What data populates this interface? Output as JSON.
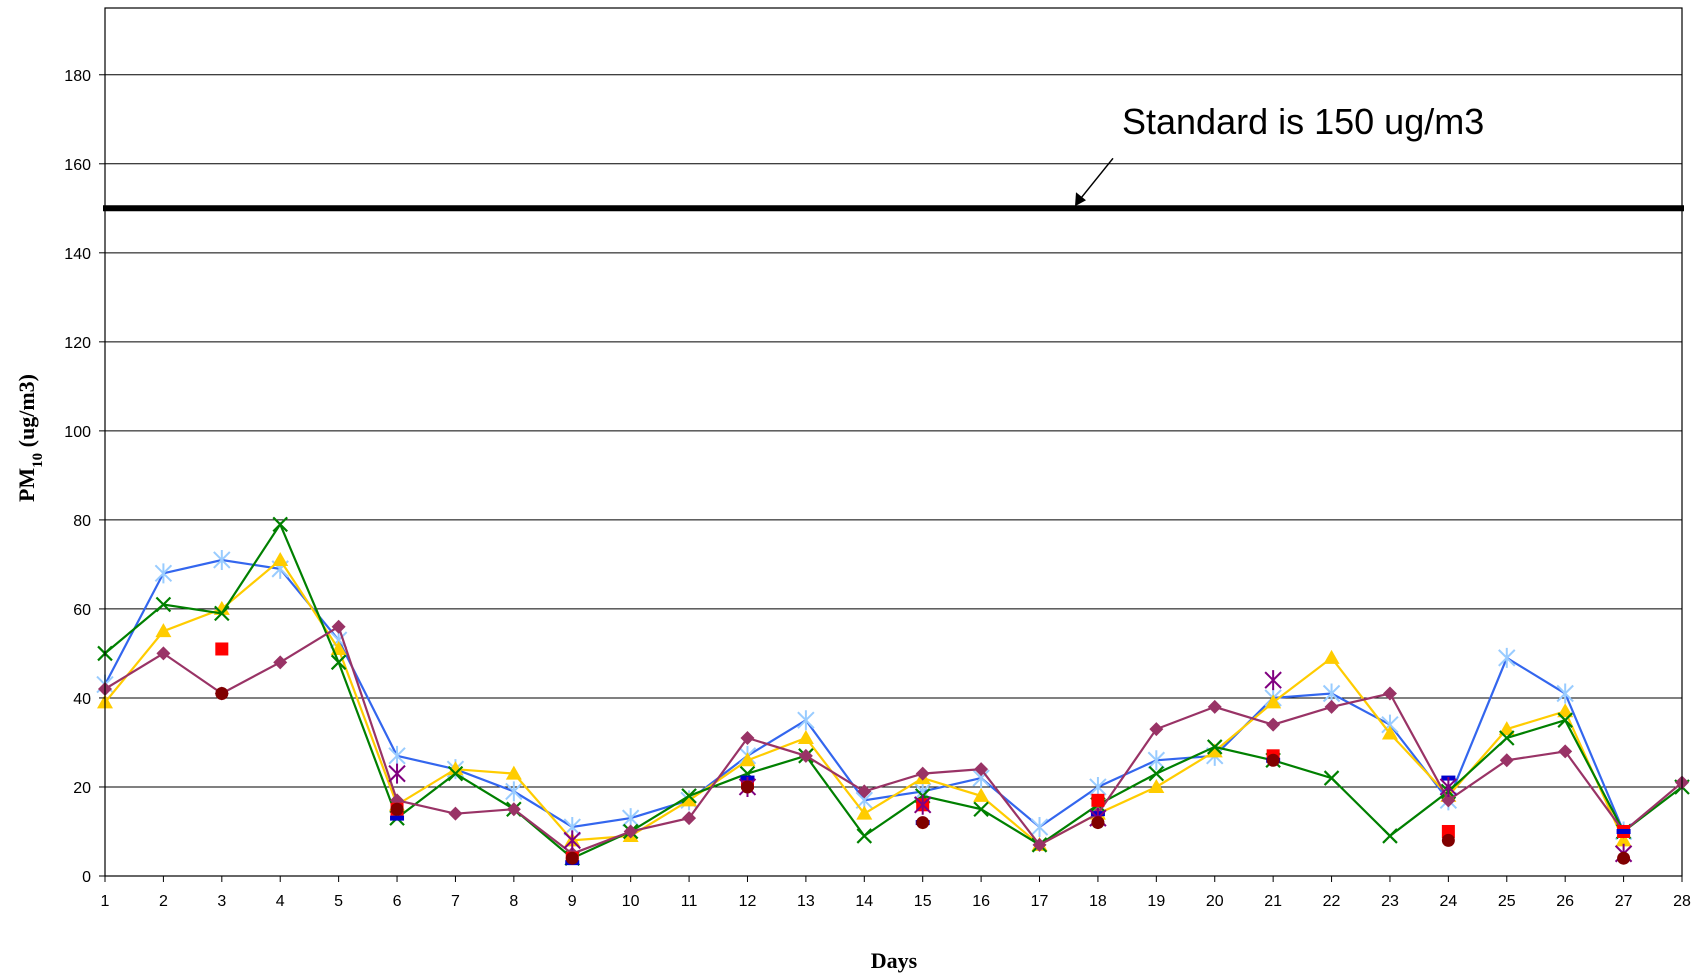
{
  "chart_data": {
    "type": "line",
    "title": "",
    "xlabel": "Days",
    "ylabel_main": "PM",
    "ylabel_sub": "10",
    "ylabel_unit": " (ug/m3)",
    "xlim": [
      1,
      28
    ],
    "ylim": [
      0,
      195
    ],
    "yticks": [
      0,
      20,
      40,
      60,
      80,
      100,
      120,
      140,
      160,
      180
    ],
    "xticks": [
      1,
      2,
      3,
      4,
      5,
      6,
      7,
      8,
      9,
      10,
      11,
      12,
      13,
      14,
      15,
      16,
      17,
      18,
      19,
      20,
      21,
      22,
      23,
      24,
      25,
      26,
      27,
      28
    ],
    "grid": "horizontal",
    "legend": "none",
    "standard": {
      "value": 150,
      "label": "Standard is 150 ug/m3",
      "color": "#000000"
    },
    "series": [
      {
        "color": "#3366ee",
        "marker": "asterisk",
        "marker_color": "#99ccff",
        "line": true,
        "points": [
          [
            1,
            43
          ],
          [
            2,
            68
          ],
          [
            3,
            71
          ],
          [
            4,
            69
          ],
          [
            5,
            53
          ],
          [
            6,
            27
          ],
          [
            7,
            24
          ],
          [
            8,
            19
          ],
          [
            9,
            11
          ],
          [
            10,
            13
          ],
          [
            11,
            17
          ],
          [
            12,
            27
          ],
          [
            13,
            35
          ],
          [
            14,
            17
          ],
          [
            15,
            19
          ],
          [
            16,
            22
          ],
          [
            17,
            11
          ],
          [
            18,
            20
          ],
          [
            19,
            26
          ],
          [
            20,
            27
          ],
          [
            21,
            40
          ],
          [
            22,
            41
          ],
          [
            23,
            34
          ],
          [
            24,
            17
          ],
          [
            25,
            49
          ],
          [
            26,
            41
          ],
          [
            27,
            10
          ]
        ]
      },
      {
        "color": "#ffcc00",
        "marker": "triangle",
        "marker_color": "#ffcc00",
        "line": true,
        "points": [
          [
            1,
            39
          ],
          [
            2,
            55
          ],
          [
            3,
            60
          ],
          [
            4,
            71
          ],
          [
            5,
            51
          ],
          [
            6,
            16
          ],
          [
            7,
            24
          ],
          [
            8,
            23
          ],
          [
            9,
            8
          ],
          [
            10,
            9
          ],
          [
            11,
            17
          ],
          [
            12,
            26
          ],
          [
            13,
            31
          ],
          [
            14,
            14
          ],
          [
            15,
            22
          ],
          [
            16,
            18
          ],
          [
            17,
            7
          ],
          [
            18,
            14
          ],
          [
            19,
            20
          ],
          [
            20,
            28
          ],
          [
            21,
            39
          ],
          [
            22,
            49
          ],
          [
            23,
            32
          ],
          [
            24,
            18
          ],
          [
            25,
            33
          ],
          [
            26,
            37
          ],
          [
            27,
            8
          ]
        ]
      },
      {
        "color": "#008000",
        "marker": "x",
        "marker_color": "#008000",
        "line": true,
        "points": [
          [
            1,
            50
          ],
          [
            2,
            61
          ],
          [
            3,
            59
          ],
          [
            4,
            79
          ],
          [
            5,
            48
          ],
          [
            6,
            13
          ],
          [
            7,
            23
          ],
          [
            8,
            15
          ],
          [
            9,
            4
          ],
          [
            10,
            10
          ],
          [
            11,
            18
          ],
          [
            12,
            23
          ],
          [
            13,
            27
          ],
          [
            14,
            9
          ],
          [
            15,
            18
          ],
          [
            16,
            15
          ],
          [
            17,
            7
          ],
          [
            18,
            16
          ],
          [
            19,
            23
          ],
          [
            20,
            29
          ],
          [
            21,
            26
          ],
          [
            22,
            22
          ],
          [
            23,
            9
          ],
          [
            24,
            19
          ],
          [
            25,
            31
          ],
          [
            26,
            35
          ],
          [
            27,
            10
          ],
          [
            28,
            20
          ]
        ]
      },
      {
        "color": "#993366",
        "marker": "diamond",
        "marker_color": "#993366",
        "line": true,
        "points": [
          [
            1,
            42
          ],
          [
            2,
            50
          ],
          [
            3,
            41
          ],
          [
            4,
            48
          ],
          [
            5,
            56
          ],
          [
            6,
            17
          ],
          [
            7,
            14
          ],
          [
            8,
            15
          ],
          [
            9,
            5
          ],
          [
            10,
            10
          ],
          [
            11,
            13
          ],
          [
            12,
            31
          ],
          [
            13,
            27
          ],
          [
            14,
            19
          ],
          [
            15,
            23
          ],
          [
            16,
            24
          ],
          [
            17,
            7
          ],
          [
            18,
            14
          ],
          [
            19,
            33
          ],
          [
            20,
            38
          ],
          [
            21,
            34
          ],
          [
            22,
            38
          ],
          [
            23,
            41
          ],
          [
            24,
            17
          ],
          [
            25,
            26
          ],
          [
            26,
            28
          ],
          [
            27,
            10
          ],
          [
            28,
            21
          ]
        ]
      },
      {
        "color": "#ff0000",
        "marker": "square",
        "marker_color": "#ff0000",
        "line": false,
        "points": [
          [
            3,
            51
          ],
          [
            6,
            15
          ],
          [
            9,
            4
          ],
          [
            12,
            21
          ],
          [
            15,
            16
          ],
          [
            18,
            17
          ],
          [
            21,
            27
          ],
          [
            24,
            10
          ],
          [
            27,
            10
          ]
        ]
      },
      {
        "color": "#0000cc",
        "marker": "dash",
        "marker_color": "#0000cc",
        "line": false,
        "points": [
          [
            6,
            13
          ],
          [
            9,
            3
          ],
          [
            12,
            22
          ],
          [
            15,
            12
          ],
          [
            18,
            14
          ],
          [
            21,
            26
          ],
          [
            24,
            22
          ],
          [
            27,
            10
          ]
        ]
      },
      {
        "color": "#800080",
        "marker": "asterisk",
        "marker_color": "#800080",
        "line": false,
        "points": [
          [
            6,
            23
          ],
          [
            9,
            8
          ],
          [
            12,
            20
          ],
          [
            15,
            16
          ],
          [
            18,
            13
          ],
          [
            21,
            44
          ],
          [
            24,
            20
          ],
          [
            27,
            5
          ]
        ]
      },
      {
        "color": "#800000",
        "marker": "circle",
        "marker_color": "#800000",
        "line": false,
        "points": [
          [
            3,
            41
          ],
          [
            6,
            15
          ],
          [
            9,
            4
          ],
          [
            12,
            20
          ],
          [
            15,
            12
          ],
          [
            18,
            12
          ],
          [
            21,
            26
          ],
          [
            24,
            8
          ],
          [
            27,
            4
          ]
        ]
      }
    ]
  }
}
